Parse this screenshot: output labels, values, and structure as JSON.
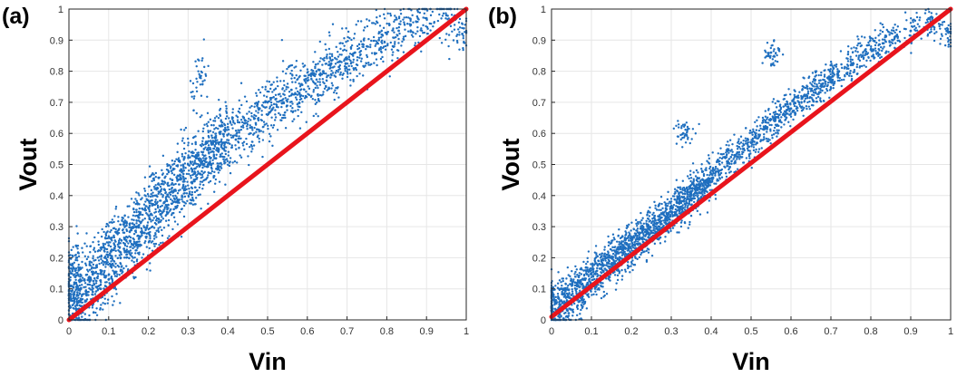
{
  "colors": {
    "points": "#1f6fbf",
    "reference_line": "#e8141c",
    "grid": "#e6e6e6",
    "axes": "#262626"
  },
  "chart_data": [
    {
      "type": "scatter",
      "panel_label": "(a)",
      "xlabel": "Vin",
      "ylabel": "Vout",
      "xlim": [
        0,
        1
      ],
      "ylim": [
        0,
        1
      ],
      "xticks": [
        "0",
        "0.1",
        "0.2",
        "0.3",
        "0.4",
        "0.5",
        "0.6",
        "0.7",
        "0.8",
        "0.9",
        "1"
      ],
      "yticks": [
        "0",
        "0.1",
        "0.2",
        "0.3",
        "0.4",
        "0.5",
        "0.6",
        "0.7",
        "0.8",
        "0.9",
        "1"
      ],
      "grid": true,
      "series": [
        {
          "kind": "scatter",
          "points": [
            [
              0.0,
              0.08
            ],
            [
              0.005,
              0.15
            ],
            [
              0.01,
              0.02
            ],
            [
              0.015,
              0.12
            ],
            [
              0.02,
              0.06
            ],
            [
              0.02,
              0.2
            ],
            [
              0.03,
              0.1
            ],
            [
              0.04,
              0.04
            ],
            [
              0.05,
              0.13
            ],
            [
              0.06,
              0.09
            ],
            [
              0.07,
              0.17
            ],
            [
              0.08,
              0.1
            ],
            [
              0.09,
              0.2
            ],
            [
              0.1,
              0.13
            ],
            [
              0.1,
              0.24
            ],
            [
              0.11,
              0.18
            ],
            [
              0.12,
              0.28
            ],
            [
              0.13,
              0.2
            ],
            [
              0.14,
              0.26
            ],
            [
              0.15,
              0.22
            ],
            [
              0.16,
              0.31
            ],
            [
              0.17,
              0.25
            ],
            [
              0.18,
              0.34
            ],
            [
              0.19,
              0.28
            ],
            [
              0.2,
              0.36
            ],
            [
              0.21,
              0.3
            ],
            [
              0.22,
              0.4
            ],
            [
              0.23,
              0.34
            ],
            [
              0.24,
              0.42
            ],
            [
              0.25,
              0.37
            ],
            [
              0.26,
              0.45
            ],
            [
              0.27,
              0.38
            ],
            [
              0.28,
              0.48
            ],
            [
              0.29,
              0.42
            ],
            [
              0.3,
              0.5
            ],
            [
              0.31,
              0.44
            ],
            [
              0.32,
              0.52
            ],
            [
              0.33,
              0.47
            ],
            [
              0.34,
              0.55
            ],
            [
              0.35,
              0.5
            ],
            [
              0.36,
              0.57
            ],
            [
              0.37,
              0.52
            ],
            [
              0.38,
              0.6
            ],
            [
              0.39,
              0.55
            ],
            [
              0.4,
              0.62
            ],
            [
              0.42,
              0.58
            ],
            [
              0.44,
              0.65
            ],
            [
              0.46,
              0.62
            ],
            [
              0.48,
              0.68
            ],
            [
              0.5,
              0.66
            ],
            [
              0.52,
              0.71
            ],
            [
              0.54,
              0.7
            ],
            [
              0.56,
              0.74
            ],
            [
              0.58,
              0.73
            ],
            [
              0.6,
              0.77
            ],
            [
              0.62,
              0.76
            ],
            [
              0.64,
              0.8
            ],
            [
              0.66,
              0.79
            ],
            [
              0.68,
              0.83
            ],
            [
              0.7,
              0.84
            ],
            [
              0.72,
              0.86
            ],
            [
              0.75,
              0.88
            ],
            [
              0.78,
              0.9
            ],
            [
              0.8,
              0.92
            ],
            [
              0.83,
              0.93
            ],
            [
              0.86,
              0.95
            ],
            [
              0.9,
              0.97
            ],
            [
              0.95,
              0.98
            ],
            [
              0.99,
              0.92
            ],
            [
              0.33,
              0.78
            ]
          ]
        },
        {
          "kind": "line",
          "x": [
            0,
            1
          ],
          "y": [
            0,
            1
          ]
        }
      ]
    },
    {
      "type": "scatter",
      "panel_label": "(b)",
      "xlabel": "Vin",
      "ylabel": "Vout",
      "xlim": [
        0,
        1
      ],
      "ylim": [
        0,
        1
      ],
      "xticks": [
        "0",
        "0.1",
        "0.2",
        "0.3",
        "0.4",
        "0.5",
        "0.6",
        "0.7",
        "0.8",
        "0.9",
        "1"
      ],
      "yticks": [
        "0",
        "0.1",
        "0.2",
        "0.3",
        "0.4",
        "0.5",
        "0.6",
        "0.7",
        "0.8",
        "0.9",
        "1"
      ],
      "grid": true,
      "series": [
        {
          "kind": "scatter",
          "points": [
            [
              0.0,
              0.03
            ],
            [
              0.005,
              0.08
            ],
            [
              0.01,
              0.0
            ],
            [
              0.02,
              0.05
            ],
            [
              0.03,
              0.1
            ],
            [
              0.04,
              0.03
            ],
            [
              0.05,
              0.08
            ],
            [
              0.06,
              0.12
            ],
            [
              0.07,
              0.06
            ],
            [
              0.08,
              0.13
            ],
            [
              0.09,
              0.1
            ],
            [
              0.1,
              0.15
            ],
            [
              0.11,
              0.12
            ],
            [
              0.12,
              0.18
            ],
            [
              0.13,
              0.14
            ],
            [
              0.14,
              0.2
            ],
            [
              0.15,
              0.17
            ],
            [
              0.16,
              0.22
            ],
            [
              0.17,
              0.19
            ],
            [
              0.18,
              0.24
            ],
            [
              0.19,
              0.21
            ],
            [
              0.2,
              0.26
            ],
            [
              0.21,
              0.23
            ],
            [
              0.22,
              0.28
            ],
            [
              0.23,
              0.25
            ],
            [
              0.24,
              0.3
            ],
            [
              0.25,
              0.28
            ],
            [
              0.26,
              0.32
            ],
            [
              0.27,
              0.3
            ],
            [
              0.28,
              0.34
            ],
            [
              0.29,
              0.32
            ],
            [
              0.3,
              0.36
            ],
            [
              0.31,
              0.34
            ],
            [
              0.32,
              0.38
            ],
            [
              0.33,
              0.36
            ],
            [
              0.34,
              0.41
            ],
            [
              0.35,
              0.39
            ],
            [
              0.36,
              0.43
            ],
            [
              0.37,
              0.41
            ],
            [
              0.38,
              0.45
            ],
            [
              0.39,
              0.43
            ],
            [
              0.4,
              0.47
            ],
            [
              0.42,
              0.48
            ],
            [
              0.44,
              0.51
            ],
            [
              0.46,
              0.53
            ],
            [
              0.48,
              0.55
            ],
            [
              0.5,
              0.57
            ],
            [
              0.52,
              0.59
            ],
            [
              0.54,
              0.62
            ],
            [
              0.56,
              0.64
            ],
            [
              0.58,
              0.66
            ],
            [
              0.6,
              0.68
            ],
            [
              0.62,
              0.7
            ],
            [
              0.64,
              0.72
            ],
            [
              0.66,
              0.74
            ],
            [
              0.68,
              0.76
            ],
            [
              0.7,
              0.78
            ],
            [
              0.72,
              0.8
            ],
            [
              0.75,
              0.82
            ],
            [
              0.78,
              0.85
            ],
            [
              0.8,
              0.87
            ],
            [
              0.83,
              0.89
            ],
            [
              0.86,
              0.91
            ],
            [
              0.9,
              0.93
            ],
            [
              0.95,
              0.96
            ],
            [
              0.99,
              0.93
            ],
            [
              0.55,
              0.86
            ],
            [
              0.33,
              0.6
            ]
          ]
        },
        {
          "kind": "line",
          "x": [
            0,
            1
          ],
          "y": [
            0.01,
            1
          ]
        }
      ]
    }
  ]
}
